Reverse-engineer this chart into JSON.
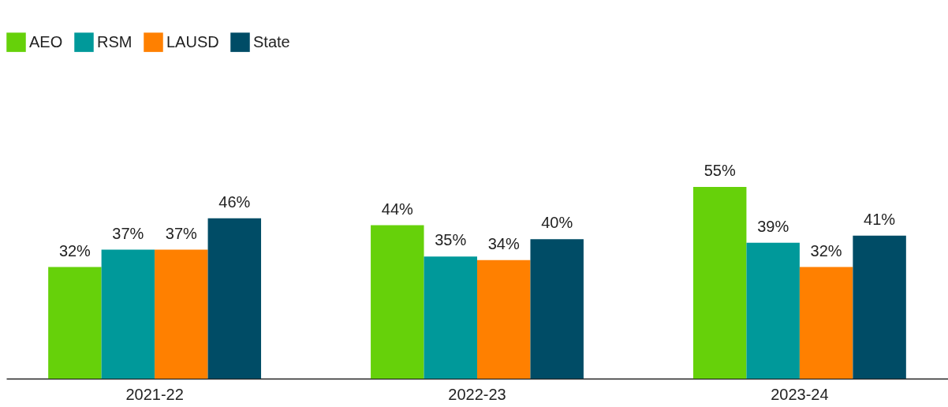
{
  "chart_data": {
    "type": "bar",
    "categories": [
      "2021-22",
      "2022-23",
      "2023-24"
    ],
    "legend": "top left",
    "grid": false,
    "series": [
      {
        "name": "AEO",
        "color": "#66d10a",
        "values": [
          32,
          44,
          55
        ],
        "value_labels": [
          "32%",
          "44%",
          "55%"
        ]
      },
      {
        "name": "RSM",
        "color": "#00999a",
        "values": [
          37,
          35,
          39
        ],
        "value_labels": [
          "37%",
          "35%",
          "39%"
        ]
      },
      {
        "name": "LAUSD",
        "color": "#ff8000",
        "values": [
          37,
          34,
          32
        ],
        "value_labels": [
          "37%",
          "34%",
          "32%"
        ]
      },
      {
        "name": "State",
        "color": "#004c66",
        "values": [
          46,
          40,
          41
        ],
        "value_labels": [
          "46%",
          "40%",
          "41%"
        ]
      }
    ]
  }
}
